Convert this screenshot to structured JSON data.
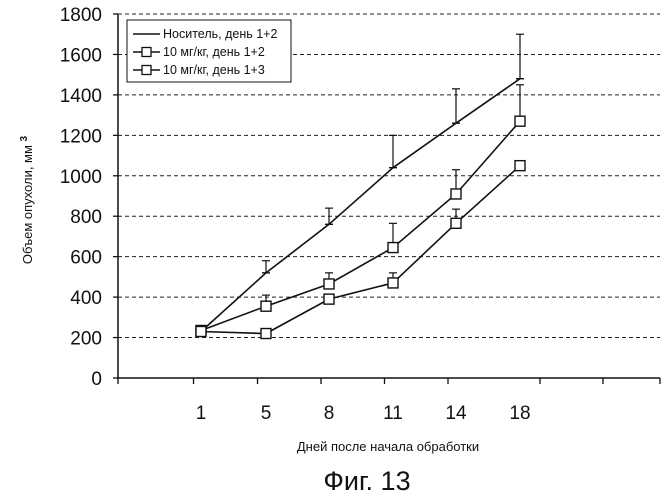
{
  "chart_data": {
    "type": "line",
    "categories": [
      "1",
      "5",
      "8",
      "11",
      "14",
      "18"
    ],
    "ylabel": "Объем опухоли, мм",
    "ylabel_sup": "3",
    "xlabel": "Дней после начала обработки",
    "ylim": [
      0,
      1800
    ],
    "yticks": [
      0,
      200,
      400,
      600,
      800,
      1000,
      1200,
      1400,
      1600,
      1800
    ],
    "grid": "horizontal-dashed",
    "legend_position": "top-left",
    "series": [
      {
        "name": "Носитель, день 1+2",
        "marker": "none",
        "values": [
          230,
          520,
          760,
          1040,
          1260,
          1480
        ],
        "errors": [
          0,
          60,
          80,
          160,
          170,
          220
        ]
      },
      {
        "name": "10 мг/кг, день 1+2",
        "marker": "square",
        "values": [
          235,
          355,
          465,
          645,
          910,
          1270
        ],
        "errors": [
          0,
          55,
          55,
          120,
          120,
          180
        ]
      },
      {
        "name": "10 мг/кг, день 1+3",
        "marker": "square",
        "values": [
          230,
          220,
          390,
          470,
          765,
          1050
        ],
        "errors": [
          0,
          0,
          0,
          50,
          70,
          0
        ]
      }
    ]
  },
  "caption": "Фиг. 13"
}
